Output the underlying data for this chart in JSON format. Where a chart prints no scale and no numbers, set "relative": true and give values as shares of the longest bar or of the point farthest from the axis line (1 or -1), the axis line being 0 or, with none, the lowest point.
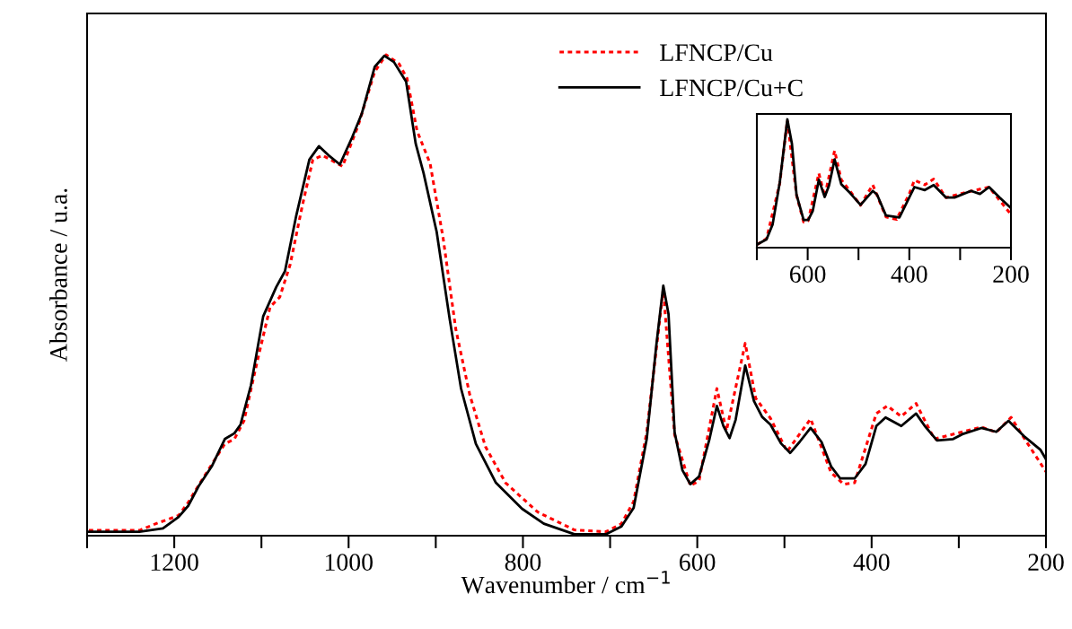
{
  "chart_data": [
    {
      "type": "line",
      "xlabel": "Wavenumber / cm$^{−1}$",
      "ylabel": "Absorbance / u.a.",
      "relative": true,
      "xlim": [
        1300,
        200
      ],
      "xticks": [
        {
          "value": 1300,
          "label": null
        },
        1200,
        {
          "value": 1100,
          "label": null
        },
        1000,
        {
          "value": 900,
          "label": null
        },
        800,
        {
          "value": 700,
          "label": null
        },
        600,
        {
          "value": 500,
          "label": null
        },
        400,
        {
          "value": 300,
          "label": null
        },
        200
      ],
      "legend": "top",
      "grid": false,
      "series": [
        {
          "name": "LFNCP/Cu",
          "color": "#ff0000",
          "line_style": "dotted",
          "x": [
            1298,
            1240,
            1221,
            1195,
            1184,
            1172,
            1142,
            1131,
            1120,
            1105,
            1090,
            1079,
            1067,
            1053,
            1041,
            1030,
            1007,
            989,
            970,
            957,
            942,
            933,
            921.5,
            906.5,
            891.5,
            877,
            861,
            843,
            820,
            783,
            741,
            705,
            687,
            673,
            658,
            639,
            626,
            608,
            598,
            577.5,
            566.6,
            545,
            533,
            516,
            497,
            470,
            446.5,
            432,
            419.5,
            394.6,
            382,
            366,
            349,
            328,
            274,
            257,
            240,
            224,
            200
          ],
          "values": [
            0.011,
            0.011,
            0.025,
            0.042,
            0.069,
            0.105,
            0.191,
            0.201,
            0.239,
            0.361,
            0.476,
            0.496,
            0.564,
            0.687,
            0.782,
            0.791,
            0.768,
            0.853,
            0.965,
            1.0,
            0.981,
            0.951,
            0.842,
            0.774,
            0.618,
            0.429,
            0.293,
            0.185,
            0.11,
            0.049,
            0.012,
            0.008,
            0.025,
            0.071,
            0.215,
            0.513,
            0.21,
            0.104,
            0.114,
            0.306,
            0.218,
            0.4,
            0.286,
            0.244,
            0.175,
            0.243,
            0.131,
            0.107,
            0.11,
            0.254,
            0.27,
            0.248,
            0.275,
            0.201,
            0.226,
            0.215,
            0.246,
            0.2,
            0.133
          ]
        },
        {
          "name": "LFNCP/Cu+C",
          "color": "#000000",
          "line_style": "solid",
          "x": [
            1298,
            1240,
            1213,
            1195,
            1184,
            1172,
            1157,
            1142,
            1131,
            1124,
            1112,
            1098,
            1083,
            1073,
            1060,
            1045,
            1034,
            1023,
            1010,
            996,
            985,
            970,
            959,
            948,
            934,
            923,
            914,
            899,
            884,
            871,
            854,
            831,
            801,
            776,
            741,
            705,
            687,
            673,
            658,
            647,
            639,
            633,
            626,
            617,
            608,
            598,
            586,
            577.5,
            570,
            563,
            556,
            545,
            535,
            525.6,
            516,
            504,
            493.5,
            482.6,
            470,
            457.5,
            446.5,
            436,
            419.5,
            407,
            394.6,
            384,
            366,
            349,
            339,
            325,
            306.5,
            296,
            274,
            257,
            243,
            224,
            206.5,
            200
          ],
          "values": [
            0.008,
            0.008,
            0.015,
            0.039,
            0.062,
            0.103,
            0.144,
            0.201,
            0.213,
            0.231,
            0.313,
            0.456,
            0.517,
            0.55,
            0.666,
            0.782,
            0.81,
            0.791,
            0.772,
            0.828,
            0.877,
            0.975,
            0.998,
            0.985,
            0.944,
            0.815,
            0.754,
            0.632,
            0.45,
            0.306,
            0.191,
            0.11,
            0.056,
            0.025,
            0.003,
            0.003,
            0.019,
            0.058,
            0.201,
            0.396,
            0.52,
            0.461,
            0.215,
            0.136,
            0.107,
            0.123,
            0.201,
            0.27,
            0.228,
            0.203,
            0.241,
            0.354,
            0.28,
            0.247,
            0.231,
            0.192,
            0.172,
            0.195,
            0.224,
            0.195,
            0.144,
            0.119,
            0.119,
            0.149,
            0.228,
            0.246,
            0.228,
            0.254,
            0.228,
            0.198,
            0.201,
            0.211,
            0.224,
            0.216,
            0.239,
            0.205,
            0.179,
            0.159
          ]
        }
      ]
    },
    {
      "type": "line",
      "relative": true,
      "xlim": [
        700,
        200
      ],
      "xticks": [
        {
          "value": 700,
          "label": null
        },
        600,
        {
          "value": 500,
          "label": null
        },
        400,
        {
          "value": 300,
          "label": null
        },
        200
      ],
      "grid": false,
      "series": [
        {
          "color": "#ff0000",
          "line_style": "dotted",
          "x": [
            700,
            681,
            655,
            640,
            622,
            608,
            599,
            578,
            566.5,
            547,
            534,
            516.6,
            496,
            472,
            446,
            425,
            400,
            390,
            369.5,
            352,
            328,
            278.6,
            243,
            222.6,
            200
          ],
          "values": [
            0.023,
            0.07,
            0.5,
            0.99,
            0.41,
            0.2,
            0.21,
            0.58,
            0.4,
            0.756,
            0.53,
            0.44,
            0.33,
            0.49,
            0.24,
            0.22,
            0.42,
            0.526,
            0.49,
            0.535,
            0.39,
            0.44,
            0.472,
            0.37,
            0.26
          ]
        },
        {
          "color": "#000000",
          "line_style": "solid",
          "x": [
            700,
            681,
            669,
            655,
            640,
            631,
            622,
            608,
            599,
            590,
            578,
            566.5,
            558,
            547,
            534,
            516.6,
            496,
            472,
            463.6,
            446,
            419.5,
            390,
            369.5,
            352,
            328,
            311,
            278.6,
            261,
            243,
            222.6,
            200
          ],
          "values": [
            0.023,
            0.065,
            0.181,
            0.507,
            1.0,
            0.809,
            0.414,
            0.216,
            0.216,
            0.286,
            0.53,
            0.395,
            0.484,
            0.688,
            0.495,
            0.426,
            0.333,
            0.442,
            0.414,
            0.251,
            0.235,
            0.472,
            0.449,
            0.488,
            0.391,
            0.391,
            0.442,
            0.419,
            0.472,
            0.391,
            0.309
          ]
        }
      ]
    }
  ]
}
